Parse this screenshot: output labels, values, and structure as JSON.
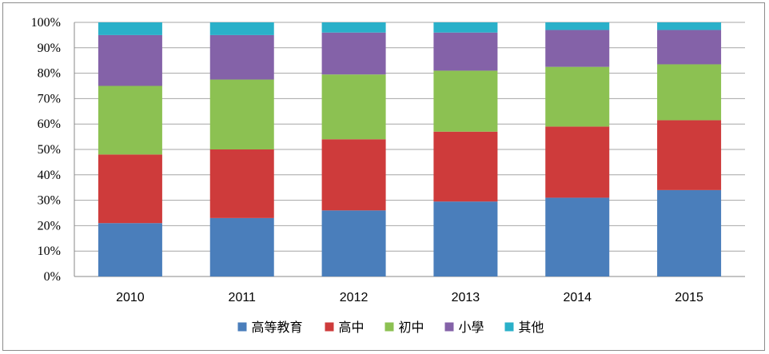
{
  "chart_data": {
    "type": "bar",
    "stacked": true,
    "percent": true,
    "categories": [
      "2010",
      "2011",
      "2012",
      "2013",
      "2014",
      "2015"
    ],
    "series": [
      {
        "name": "高等教育",
        "color": "#4a7ebb",
        "values": [
          21,
          23,
          26,
          29.5,
          31,
          34
        ]
      },
      {
        "name": "高中",
        "color": "#ce3b3b",
        "values": [
          27,
          27,
          28,
          27.5,
          28,
          27.5
        ]
      },
      {
        "name": "初中",
        "color": "#8cc152",
        "values": [
          27,
          27.5,
          25.5,
          24,
          23.5,
          22
        ]
      },
      {
        "name": "小學",
        "color": "#8462a8",
        "values": [
          20,
          17.5,
          16.5,
          15,
          14.5,
          13.5
        ]
      },
      {
        "name": "其他",
        "color": "#2ab0c9",
        "values": [
          5,
          5,
          4,
          4,
          3,
          3
        ]
      }
    ],
    "y_ticks": [
      "0%",
      "10%",
      "20%",
      "30%",
      "40%",
      "50%",
      "60%",
      "70%",
      "80%",
      "90%",
      "100%"
    ],
    "ylim": [
      0,
      100
    ],
    "grid": true,
    "legend_position": "bottom"
  }
}
